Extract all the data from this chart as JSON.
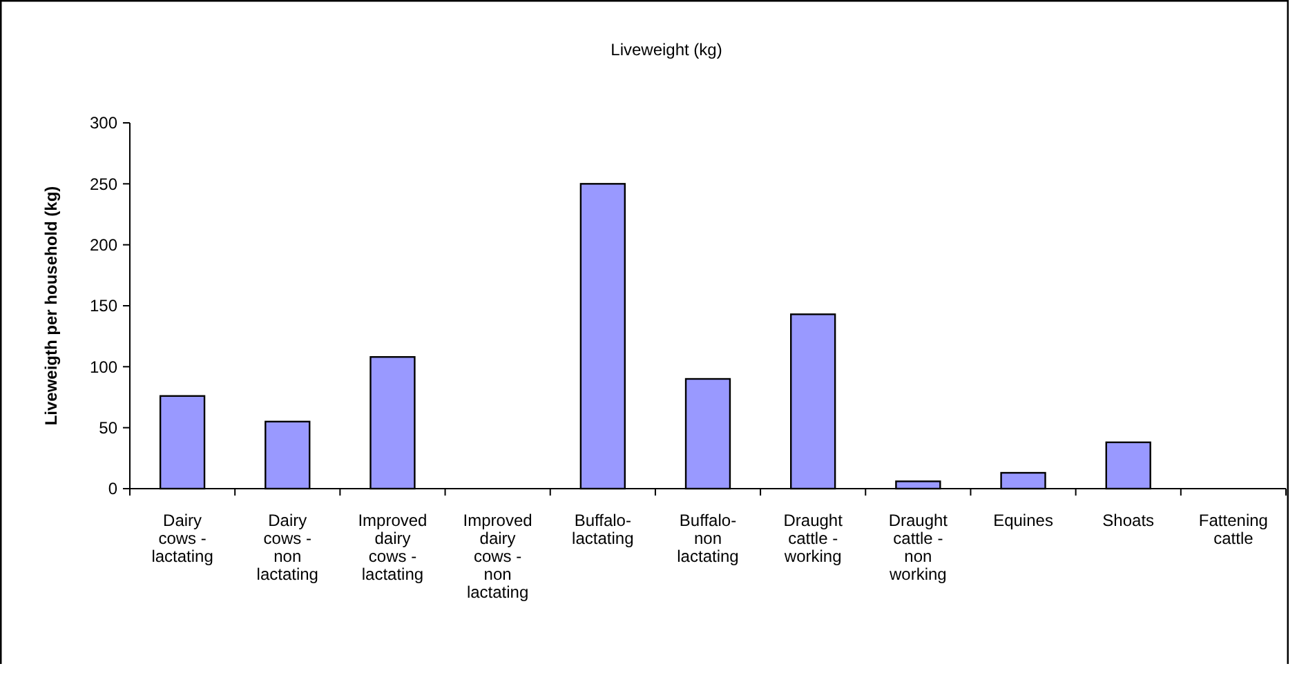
{
  "chart_data": {
    "type": "bar",
    "title": "Liveweight (kg)",
    "ylabel": "Liveweigth per household (kg)",
    "categories": [
      "Dairy cows - lactating",
      "Dairy cows - non lactating",
      "Improved dairy cows - lactating",
      "Improved dairy cows - non lactating",
      "Buffalo-lactating",
      "Buffalo-non lactating",
      "Draught cattle - working",
      "Draught cattle - non working",
      "Equines",
      "Shoats",
      "Fattening cattle"
    ],
    "values": [
      76,
      55,
      108,
      0,
      250,
      90,
      143,
      6,
      13,
      38,
      0
    ],
    "color": "#9999ff",
    "ylim": [
      0,
      300
    ],
    "yticks": [
      0,
      50,
      100,
      150,
      200,
      250,
      300
    ],
    "grid": false
  }
}
